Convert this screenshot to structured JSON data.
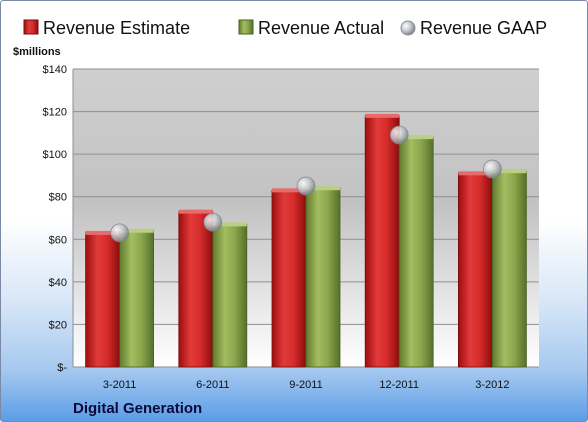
{
  "chart_data": {
    "type": "bar",
    "categories": [
      "3-2011",
      "6-2011",
      "9-2011",
      "12-2011",
      "3-2012"
    ],
    "series": [
      {
        "name": "Revenue Estimate",
        "values": [
          63,
          73,
          83,
          118,
          91
        ],
        "color": "#d42a2a"
      },
      {
        "name": "Revenue Actual",
        "values": [
          64,
          67,
          84,
          108,
          92
        ],
        "color": "#8aa54b"
      }
    ],
    "markers": {
      "name": "Revenue GAAP",
      "values": [
        63,
        68,
        85,
        109,
        93
      ],
      "color": "#bfc3c9"
    },
    "ylabel": "$millions",
    "ylim": [
      0,
      140
    ],
    "yticks": [
      0,
      20,
      40,
      60,
      80,
      100,
      120,
      140
    ],
    "ytick_labels": [
      "$-",
      "$20",
      "$40",
      "$60",
      "$80",
      "$100",
      "$120",
      "$140"
    ],
    "grid": true,
    "legend_position": "top"
  },
  "footer": {
    "company": "Digital Generation"
  }
}
